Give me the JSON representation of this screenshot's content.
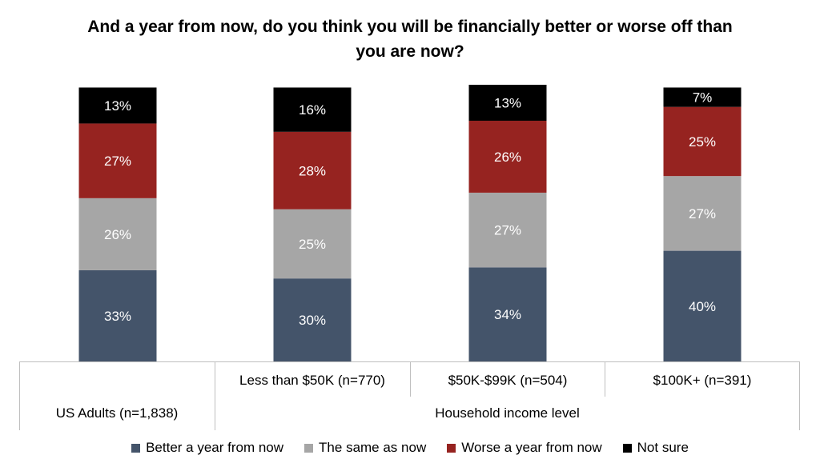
{
  "chart_data": {
    "type": "bar",
    "stacked": true,
    "title": "And a year from now, do you think you will be financially better or worse off than you are now?",
    "categories": [
      "US Adults (n=1,838)",
      "Less than $50K (n=770)",
      "$50K-$99K (n=504)",
      "$100K+ (n=391)"
    ],
    "category_group": {
      "label": "Household income level",
      "members": [
        1,
        2,
        3
      ]
    },
    "series": [
      {
        "name": "Better a year from now",
        "color": "#44546a",
        "values": [
          33,
          30,
          34,
          40
        ]
      },
      {
        "name": "The same as now",
        "color": "#a6a6a6",
        "values": [
          26,
          25,
          27,
          27
        ]
      },
      {
        "name": "Worse a year from now",
        "color": "#962320",
        "values": [
          27,
          28,
          26,
          25
        ]
      },
      {
        "name": "Not sure",
        "color": "#000000",
        "values": [
          13,
          16,
          13,
          7
        ]
      }
    ],
    "value_suffix": "%",
    "legend_position": "bottom",
    "grid": false
  }
}
